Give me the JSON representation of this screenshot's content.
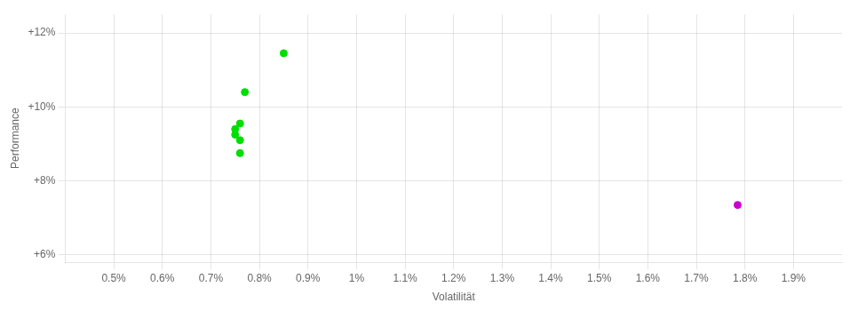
{
  "chart_data": {
    "type": "scatter",
    "xlabel": "Volatilität",
    "ylabel": "Performance",
    "series": [
      {
        "color": "#00dd00",
        "marker": "circle",
        "x": [
          0.0085,
          0.0077,
          0.0076,
          0.0075,
          0.0075,
          0.0076,
          0.0076
        ],
        "values": [
          0.1145,
          0.104,
          0.0955,
          0.094,
          0.0925,
          0.091,
          0.0875
        ]
      },
      {
        "color": "#cc00cc",
        "marker": "circle",
        "x": [
          0.01785
        ],
        "values": [
          0.0735
        ]
      }
    ],
    "xlim": [
      0.004,
      0.02
    ],
    "ylim": [
      0.058,
      0.125
    ],
    "xticks": [
      {
        "value": 0.005,
        "label": "0.5%"
      },
      {
        "value": 0.006,
        "label": "0.6%"
      },
      {
        "value": 0.007,
        "label": "0.7%"
      },
      {
        "value": 0.008,
        "label": "0.8%"
      },
      {
        "value": 0.009,
        "label": "0.9%"
      },
      {
        "value": 0.01,
        "label": "1%"
      },
      {
        "value": 0.011,
        "label": "1.1%"
      },
      {
        "value": 0.012,
        "label": "1.2%"
      },
      {
        "value": 0.013,
        "label": "1.3%"
      },
      {
        "value": 0.014,
        "label": "1.4%"
      },
      {
        "value": 0.015,
        "label": "1.5%"
      },
      {
        "value": 0.016,
        "label": "1.6%"
      },
      {
        "value": 0.017,
        "label": "1.7%"
      },
      {
        "value": 0.018,
        "label": "1.8%"
      },
      {
        "value": 0.019,
        "label": "1.9%"
      }
    ],
    "yticks": [
      {
        "value": 0.06,
        "label": "+6%"
      },
      {
        "value": 0.08,
        "label": "+8%"
      },
      {
        "value": 0.1,
        "label": "+10%"
      },
      {
        "value": 0.12,
        "label": "+12%"
      }
    ],
    "grid": true
  }
}
